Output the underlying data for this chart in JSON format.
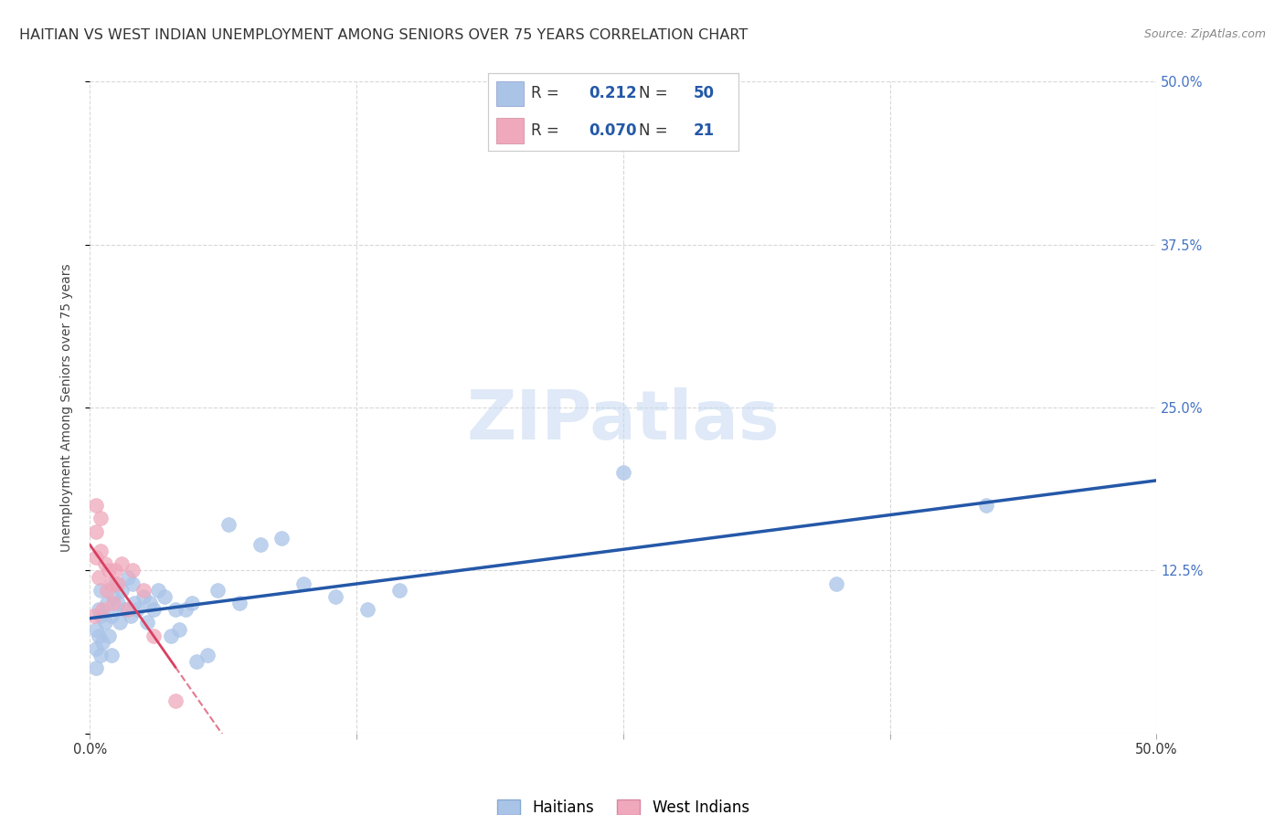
{
  "title": "HAITIAN VS WEST INDIAN UNEMPLOYMENT AMONG SENIORS OVER 75 YEARS CORRELATION CHART",
  "source": "Source: ZipAtlas.com",
  "ylabel": "Unemployment Among Seniors over 75 years",
  "xlim": [
    0.0,
    0.5
  ],
  "ylim": [
    0.0,
    0.5
  ],
  "background_color": "#ffffff",
  "grid_color": "#d8d8d8",
  "watermark": "ZIPatlas",
  "haitians_color": "#aac4e8",
  "west_indians_color": "#f0a8bc",
  "haitians_line_color": "#2458a8",
  "west_indians_line_color": "#d84060",
  "haitians_R": 0.212,
  "haitians_N": 50,
  "west_indians_R": 0.07,
  "west_indians_N": 21,
  "haitians_x": [
    0.003,
    0.003,
    0.003,
    0.004,
    0.004,
    0.005,
    0.005,
    0.005,
    0.006,
    0.007,
    0.008,
    0.009,
    0.01,
    0.01,
    0.011,
    0.012,
    0.013,
    0.014,
    0.015,
    0.016,
    0.018,
    0.019,
    0.02,
    0.021,
    0.022,
    0.025,
    0.027,
    0.028,
    0.03,
    0.032,
    0.035,
    0.038,
    0.04,
    0.042,
    0.045,
    0.048,
    0.05,
    0.055,
    0.06,
    0.065,
    0.07,
    0.08,
    0.09,
    0.1,
    0.115,
    0.13,
    0.145,
    0.25,
    0.35,
    0.42
  ],
  "haitians_y": [
    0.08,
    0.065,
    0.05,
    0.095,
    0.075,
    0.11,
    0.09,
    0.06,
    0.07,
    0.085,
    0.1,
    0.075,
    0.09,
    0.06,
    0.105,
    0.115,
    0.1,
    0.085,
    0.11,
    0.095,
    0.12,
    0.09,
    0.115,
    0.1,
    0.095,
    0.105,
    0.085,
    0.1,
    0.095,
    0.11,
    0.105,
    0.075,
    0.095,
    0.08,
    0.095,
    0.1,
    0.055,
    0.06,
    0.11,
    0.16,
    0.1,
    0.145,
    0.15,
    0.115,
    0.105,
    0.095,
    0.11,
    0.2,
    0.115,
    0.175
  ],
  "west_indians_x": [
    0.002,
    0.003,
    0.003,
    0.003,
    0.004,
    0.005,
    0.005,
    0.006,
    0.007,
    0.008,
    0.009,
    0.01,
    0.011,
    0.012,
    0.013,
    0.015,
    0.018,
    0.02,
    0.025,
    0.03,
    0.04
  ],
  "west_indians_y": [
    0.09,
    0.135,
    0.155,
    0.175,
    0.12,
    0.14,
    0.165,
    0.095,
    0.13,
    0.11,
    0.125,
    0.115,
    0.1,
    0.125,
    0.115,
    0.13,
    0.095,
    0.125,
    0.11,
    0.075,
    0.025
  ],
  "title_fontsize": 11.5,
  "axis_label_fontsize": 10,
  "tick_fontsize": 10.5,
  "legend_fontsize": 12,
  "marker_size": 130,
  "title_color": "#333333",
  "tick_color_right": "#4472c4",
  "source_color": "#888888"
}
